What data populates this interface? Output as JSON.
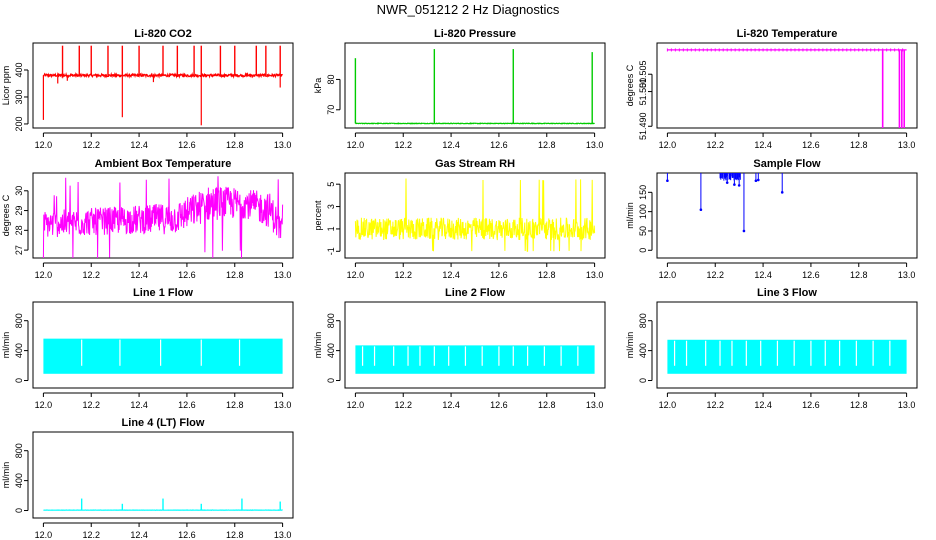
{
  "page_title": "NWR_051212  2 Hz Diagnostics",
  "chart_data": [
    {
      "type": "line",
      "title": "Li-820 CO2",
      "xlabel": "",
      "ylabel": "Licor ppm",
      "xlim": [
        12.0,
        13.0
      ],
      "ylim": [
        185,
        500
      ],
      "xticks": [
        12.0,
        12.2,
        12.4,
        12.6,
        12.8,
        13.0
      ],
      "yticks": [
        200,
        300,
        400
      ],
      "series": [
        {
          "color": "#ff0000",
          "style": "spiky-up",
          "base": 380,
          "noise": 10,
          "spikes": [
            [
              12.08,
              490
            ],
            [
              12.15,
              490
            ],
            [
              12.2,
              490
            ],
            [
              12.27,
              490
            ],
            [
              12.33,
              490
            ],
            [
              12.4,
              490
            ],
            [
              12.5,
              490
            ],
            [
              12.56,
              490
            ],
            [
              12.63,
              490
            ],
            [
              12.66,
              490
            ],
            [
              12.74,
              490
            ],
            [
              12.8,
              490
            ],
            [
              12.89,
              490
            ],
            [
              12.93,
              490
            ],
            [
              12.99,
              490
            ]
          ],
          "dips": [
            [
              12.0,
              215
            ],
            [
              12.33,
              225
            ],
            [
              12.66,
              195
            ],
            [
              12.06,
              350
            ],
            [
              12.1,
              360
            ],
            [
              12.46,
              355
            ],
            [
              12.99,
              335
            ]
          ]
        }
      ]
    },
    {
      "type": "line",
      "title": "Li-820 Pressure",
      "xlabel": "",
      "ylabel": "kPa",
      "xlim": [
        12.0,
        13.0
      ],
      "ylim": [
        64,
        92
      ],
      "xticks": [
        12.0,
        12.2,
        12.4,
        12.6,
        12.8,
        13.0
      ],
      "yticks": [
        70,
        80
      ],
      "series": [
        {
          "color": "#00cc00",
          "style": "flat-spikes",
          "base": 65.5,
          "noise": 0.2,
          "spikes": [
            [
              12.0,
              87
            ],
            [
              12.33,
              90
            ],
            [
              12.66,
              90
            ],
            [
              12.99,
              89
            ]
          ]
        }
      ]
    },
    {
      "type": "line",
      "title": "Li-820 Temperature",
      "xlabel": "",
      "ylabel": "degrees C",
      "xlim": [
        12.0,
        13.0
      ],
      "ylim": [
        51.4895,
        51.514
      ],
      "xticks": [
        12.0,
        12.2,
        12.4,
        12.6,
        12.8,
        13.0
      ],
      "yticks": [
        51.49,
        51.5,
        51.505
      ],
      "yticklabels": [
        "51.490",
        "51.500",
        "51.505"
      ],
      "series": [
        {
          "color": "#ff00ff",
          "style": "flat-drops",
          "base": 51.512,
          "noise": 0,
          "drops": [
            [
              12.9,
              51.4895
            ],
            [
              12.97,
              51.4895
            ],
            [
              12.98,
              51.4895
            ],
            [
              12.99,
              51.4895
            ]
          ]
        }
      ]
    },
    {
      "type": "line",
      "title": "Ambient Box Temperature",
      "xlabel": "",
      "ylabel": "degrees C",
      "xlim": [
        12.0,
        13.0
      ],
      "ylim": [
        26.6,
        30.9
      ],
      "xticks": [
        12.0,
        12.2,
        12.4,
        12.6,
        12.8,
        13.0
      ],
      "yticks": [
        27,
        28,
        29,
        30
      ],
      "series": [
        {
          "color": "#ff00ff",
          "style": "noisy-band",
          "band_lo": [
            [
              12.0,
              27.6
            ],
            [
              12.3,
              27.8
            ],
            [
              12.55,
              27.8
            ],
            [
              12.7,
              28.5
            ],
            [
              12.85,
              28.6
            ],
            [
              12.95,
              28.1
            ],
            [
              13.0,
              27.1
            ]
          ],
          "band_hi": [
            [
              12.0,
              29.0
            ],
            [
              12.3,
              29.2
            ],
            [
              12.55,
              29.4
            ],
            [
              12.7,
              30.3
            ],
            [
              12.85,
              30.1
            ],
            [
              12.95,
              29.9
            ],
            [
              13.0,
              28.6
            ]
          ],
          "extremes": [
            27.0,
            30.8
          ]
        }
      ]
    },
    {
      "type": "line",
      "title": "Gas Stream RH",
      "xlabel": "",
      "ylabel": "percent",
      "xlim": [
        12.0,
        13.0
      ],
      "ylim": [
        -1.6,
        6.0
      ],
      "xticks": [
        12.0,
        12.2,
        12.4,
        12.6,
        12.8,
        13.0
      ],
      "yticks": [
        -1,
        1,
        3,
        5
      ],
      "series": [
        {
          "color": "#ffff00",
          "style": "noisy-band",
          "band_lo": [
            [
              12.0,
              0.0
            ],
            [
              13.0,
              0.0
            ]
          ],
          "band_hi": [
            [
              12.0,
              2.0
            ],
            [
              13.0,
              2.0
            ]
          ],
          "extremes": [
            -1.0,
            5.6
          ]
        }
      ]
    },
    {
      "type": "line",
      "title": "Sample Flow",
      "xlabel": "",
      "ylabel": "ml/min",
      "xlim": [
        12.0,
        13.0
      ],
      "ylim": [
        -20,
        200
      ],
      "xticks": [
        12.0,
        12.2,
        12.4,
        12.6,
        12.8,
        13.0
      ],
      "yticks": [
        0,
        50,
        100,
        150
      ],
      "series": [
        {
          "color": "#0000ff",
          "style": "top-drops",
          "base": 205,
          "drops": [
            [
              12.0,
              180
            ],
            [
              12.14,
              105
            ],
            [
              12.25,
              175
            ],
            [
              12.28,
              170
            ],
            [
              12.3,
              168
            ],
            [
              12.32,
              50
            ],
            [
              12.37,
              180
            ],
            [
              12.38,
              182
            ],
            [
              12.48,
              150
            ]
          ]
        }
      ]
    },
    {
      "type": "line",
      "title": "Line 1 Flow",
      "xlabel": "",
      "ylabel": "ml/min",
      "xlim": [
        12.0,
        13.0
      ],
      "ylim": [
        -100,
        1050
      ],
      "xticks": [
        12.0,
        12.2,
        12.4,
        12.6,
        12.8,
        13.0
      ],
      "yticks": [
        0,
        400,
        800
      ],
      "series": [
        {
          "color": "#00ffff",
          "style": "block",
          "lo": 90,
          "hi": 560,
          "gaps": [
            12.16,
            12.32,
            12.49,
            12.66,
            12.82
          ]
        }
      ]
    },
    {
      "type": "line",
      "title": "Line 2 Flow",
      "xlabel": "",
      "ylabel": "ml/min",
      "xlim": [
        12.0,
        13.0
      ],
      "ylim": [
        -100,
        1050
      ],
      "xticks": [
        12.0,
        12.2,
        12.4,
        12.6,
        12.8,
        13.0
      ],
      "yticks": [
        0,
        400,
        800
      ],
      "series": [
        {
          "color": "#00ffff",
          "style": "block",
          "lo": 90,
          "hi": 470,
          "gaps": [
            12.03,
            12.08,
            12.16,
            12.22,
            12.27,
            12.33,
            12.39,
            12.46,
            12.53,
            12.6,
            12.66,
            12.72,
            12.79,
            12.86,
            12.93
          ]
        }
      ]
    },
    {
      "type": "line",
      "title": "Line 3 Flow",
      "xlabel": "",
      "ylabel": "ml/min",
      "xlim": [
        12.0,
        13.0
      ],
      "ylim": [
        -100,
        1050
      ],
      "xticks": [
        12.0,
        12.2,
        12.4,
        12.6,
        12.8,
        13.0
      ],
      "yticks": [
        0,
        400,
        800
      ],
      "series": [
        {
          "color": "#00ffff",
          "style": "block",
          "lo": 90,
          "hi": 545,
          "gaps": [
            12.03,
            12.08,
            12.16,
            12.22,
            12.27,
            12.33,
            12.39,
            12.46,
            12.53,
            12.6,
            12.66,
            12.72,
            12.79,
            12.86,
            12.93
          ]
        }
      ]
    },
    {
      "type": "line",
      "title": "Line 4 (LT) Flow",
      "xlabel": "",
      "ylabel": "ml/min",
      "xlim": [
        12.0,
        13.0
      ],
      "ylim": [
        -100,
        1050
      ],
      "xticks": [
        12.0,
        12.2,
        12.4,
        12.6,
        12.8,
        13.0
      ],
      "yticks": [
        0,
        400,
        800
      ],
      "series": [
        {
          "color": "#00ffff",
          "style": "flat-spikes",
          "base": 5,
          "noise": 3,
          "spikes": [
            [
              12.16,
              160
            ],
            [
              12.33,
              90
            ],
            [
              12.5,
              160
            ],
            [
              12.66,
              90
            ],
            [
              12.83,
              160
            ],
            [
              12.99,
              120
            ]
          ]
        }
      ]
    }
  ]
}
